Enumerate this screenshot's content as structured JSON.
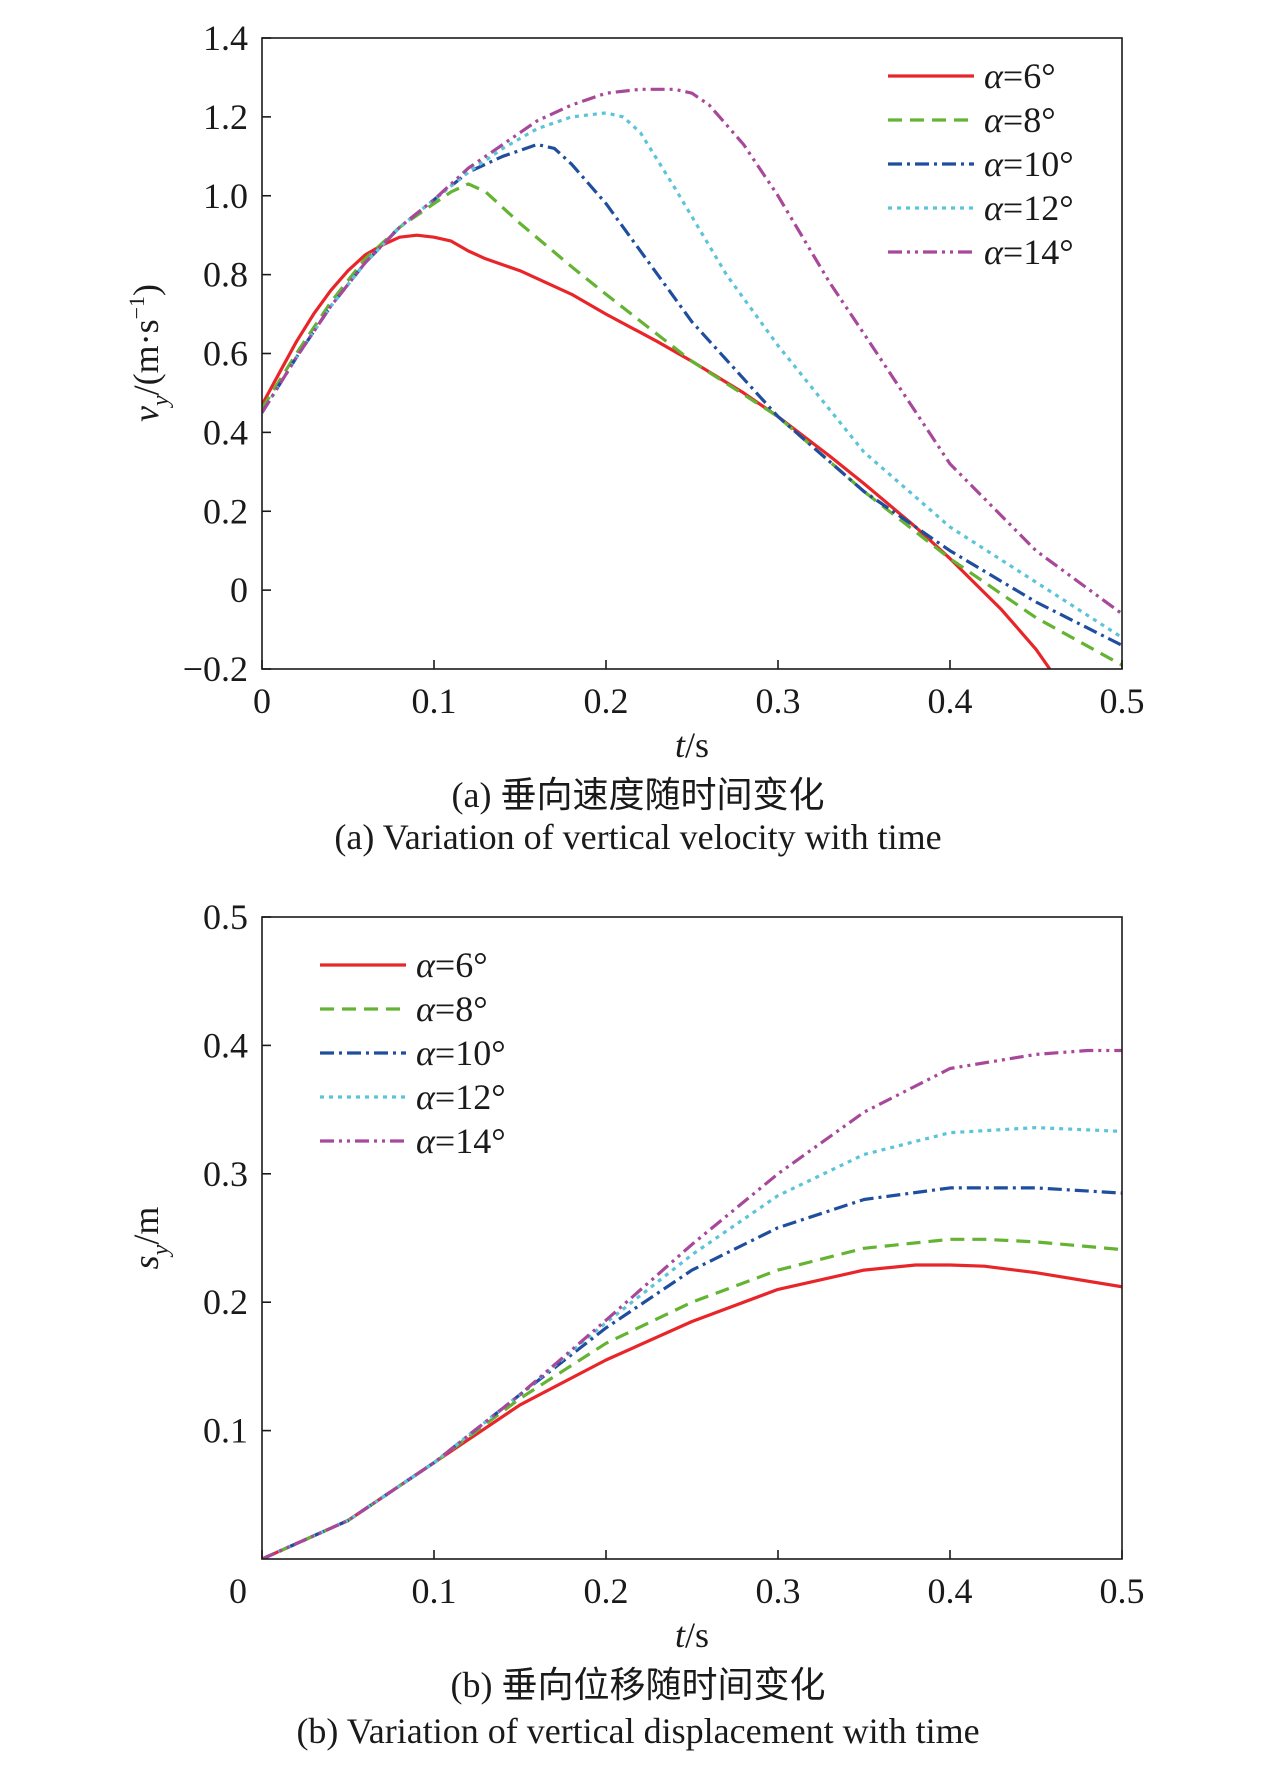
{
  "figure": {
    "caption_a_cn": "(a) 垂向速度随时间变化",
    "caption_a_en": "(a) Variation of vertical velocity with time",
    "caption_b_cn": "(b) 垂向位移随时间变化",
    "caption_b_en": "(b) Variation of vertical displacement with time"
  },
  "colors": {
    "a6": "#e8262a",
    "a8": "#64b332",
    "a10": "#1f4e9f",
    "a12": "#5cc4d8",
    "a14": "#a8489a",
    "axis": "#1a1a1a"
  },
  "chart_data": [
    {
      "type": "line",
      "xlabel": "t/s",
      "ylabel": "v_y/(m·s^-1)",
      "xlim": [
        0,
        0.5
      ],
      "ylim": [
        -0.2,
        1.4
      ],
      "xticks": [
        0,
        0.1,
        0.2,
        0.3,
        0.4,
        0.5
      ],
      "xtick_labels": [
        "0",
        "0.1",
        "0.2",
        "0.3",
        "0.4",
        "0.5"
      ],
      "yticks": [
        -0.2,
        0,
        0.2,
        0.4,
        0.6,
        0.8,
        1.0,
        1.2,
        1.4
      ],
      "ytick_labels": [
        "−0.2",
        "0",
        "0.2",
        "0.4",
        "0.6",
        "0.8",
        "1.0",
        "1.2",
        "1.4"
      ],
      "grid": false,
      "legend_position": "top-right",
      "series": [
        {
          "name": "α=6°",
          "color_key": "a6",
          "dash": "solid",
          "x": [
            0,
            0.01,
            0.02,
            0.03,
            0.04,
            0.05,
            0.06,
            0.07,
            0.08,
            0.09,
            0.1,
            0.11,
            0.12,
            0.13,
            0.15,
            0.18,
            0.2,
            0.23,
            0.25,
            0.28,
            0.3,
            0.33,
            0.35,
            0.38,
            0.4,
            0.43,
            0.45,
            0.458
          ],
          "y": [
            0.47,
            0.55,
            0.63,
            0.7,
            0.76,
            0.81,
            0.85,
            0.875,
            0.895,
            0.9,
            0.895,
            0.885,
            0.86,
            0.84,
            0.81,
            0.75,
            0.7,
            0.63,
            0.58,
            0.5,
            0.44,
            0.34,
            0.27,
            0.16,
            0.08,
            -0.05,
            -0.15,
            -0.2
          ]
        },
        {
          "name": "α=8°",
          "color_key": "a8",
          "dash": "dash",
          "x": [
            0,
            0.02,
            0.04,
            0.06,
            0.08,
            0.1,
            0.11,
            0.12,
            0.13,
            0.15,
            0.18,
            0.2,
            0.25,
            0.3,
            0.35,
            0.4,
            0.45,
            0.5
          ],
          "y": [
            0.46,
            0.6,
            0.73,
            0.84,
            0.92,
            0.98,
            1.01,
            1.03,
            1.01,
            0.93,
            0.82,
            0.75,
            0.58,
            0.44,
            0.25,
            0.08,
            -0.07,
            -0.19
          ]
        },
        {
          "name": "α=10°",
          "color_key": "a10",
          "dash": "dashdot",
          "x": [
            0,
            0.02,
            0.04,
            0.06,
            0.08,
            0.1,
            0.12,
            0.14,
            0.16,
            0.17,
            0.18,
            0.2,
            0.23,
            0.25,
            0.3,
            0.35,
            0.4,
            0.45,
            0.5
          ],
          "y": [
            0.45,
            0.59,
            0.72,
            0.83,
            0.92,
            0.99,
            1.06,
            1.1,
            1.13,
            1.12,
            1.08,
            0.98,
            0.8,
            0.68,
            0.44,
            0.25,
            0.1,
            -0.03,
            -0.14
          ]
        },
        {
          "name": "α=12°",
          "color_key": "a12",
          "dash": "dot",
          "x": [
            0,
            0.02,
            0.04,
            0.06,
            0.08,
            0.1,
            0.12,
            0.14,
            0.16,
            0.18,
            0.2,
            0.21,
            0.22,
            0.24,
            0.27,
            0.3,
            0.35,
            0.4,
            0.45,
            0.5
          ],
          "y": [
            0.45,
            0.59,
            0.72,
            0.83,
            0.92,
            0.99,
            1.06,
            1.12,
            1.17,
            1.2,
            1.21,
            1.2,
            1.16,
            1.02,
            0.8,
            0.62,
            0.35,
            0.16,
            0.02,
            -0.12
          ]
        },
        {
          "name": "α=14°",
          "color_key": "a14",
          "dash": "dashdotdot",
          "x": [
            0,
            0.02,
            0.04,
            0.06,
            0.08,
            0.1,
            0.12,
            0.14,
            0.16,
            0.18,
            0.2,
            0.22,
            0.24,
            0.25,
            0.26,
            0.28,
            0.3,
            0.33,
            0.35,
            0.4,
            0.45,
            0.5
          ],
          "y": [
            0.45,
            0.59,
            0.72,
            0.83,
            0.92,
            0.99,
            1.07,
            1.13,
            1.19,
            1.23,
            1.26,
            1.27,
            1.27,
            1.26,
            1.23,
            1.13,
            1.0,
            0.78,
            0.65,
            0.32,
            0.1,
            -0.06
          ]
        }
      ]
    },
    {
      "type": "line",
      "xlabel": "t/s",
      "ylabel": "s_y/m",
      "xlim": [
        0,
        0.5
      ],
      "ylim": [
        0,
        0.5
      ],
      "xticks": [
        0,
        0.1,
        0.2,
        0.3,
        0.4,
        0.5
      ],
      "xtick_labels": [
        "0",
        "0.1",
        "0.2",
        "0.3",
        "0.4",
        "0.5"
      ],
      "yticks": [
        0.1,
        0.2,
        0.3,
        0.4,
        0.5
      ],
      "ytick_labels": [
        "0.1",
        "0.2",
        "0.3",
        "0.4",
        "0.5"
      ],
      "grid": false,
      "legend_position": "top-left",
      "series": [
        {
          "name": "α=6°",
          "color_key": "a6",
          "dash": "solid",
          "x": [
            0,
            0.05,
            0.1,
            0.15,
            0.2,
            0.25,
            0.3,
            0.35,
            0.38,
            0.4,
            0.42,
            0.45,
            0.5
          ],
          "y": [
            0,
            0.03,
            0.075,
            0.12,
            0.155,
            0.185,
            0.21,
            0.225,
            0.229,
            0.229,
            0.228,
            0.223,
            0.212
          ]
        },
        {
          "name": "α=8°",
          "color_key": "a8",
          "dash": "dash",
          "x": [
            0,
            0.05,
            0.1,
            0.15,
            0.2,
            0.25,
            0.3,
            0.35,
            0.4,
            0.42,
            0.45,
            0.5
          ],
          "y": [
            0,
            0.03,
            0.075,
            0.125,
            0.168,
            0.2,
            0.225,
            0.242,
            0.249,
            0.249,
            0.247,
            0.241
          ]
        },
        {
          "name": "α=10°",
          "color_key": "a10",
          "dash": "dashdot",
          "x": [
            0,
            0.05,
            0.1,
            0.15,
            0.2,
            0.25,
            0.3,
            0.35,
            0.4,
            0.45,
            0.5
          ],
          "y": [
            0,
            0.03,
            0.075,
            0.128,
            0.18,
            0.225,
            0.258,
            0.28,
            0.289,
            0.289,
            0.285
          ]
        },
        {
          "name": "α=12°",
          "color_key": "a12",
          "dash": "dot",
          "x": [
            0,
            0.05,
            0.1,
            0.15,
            0.2,
            0.25,
            0.3,
            0.35,
            0.4,
            0.45,
            0.5
          ],
          "y": [
            0,
            0.03,
            0.075,
            0.128,
            0.184,
            0.237,
            0.283,
            0.315,
            0.332,
            0.336,
            0.333
          ]
        },
        {
          "name": "α=14°",
          "color_key": "a14",
          "dash": "dashdotdot",
          "x": [
            0,
            0.05,
            0.1,
            0.15,
            0.2,
            0.25,
            0.3,
            0.35,
            0.4,
            0.45,
            0.48,
            0.5
          ],
          "y": [
            0,
            0.03,
            0.075,
            0.128,
            0.186,
            0.245,
            0.3,
            0.348,
            0.382,
            0.393,
            0.396,
            0.396
          ]
        }
      ]
    }
  ]
}
